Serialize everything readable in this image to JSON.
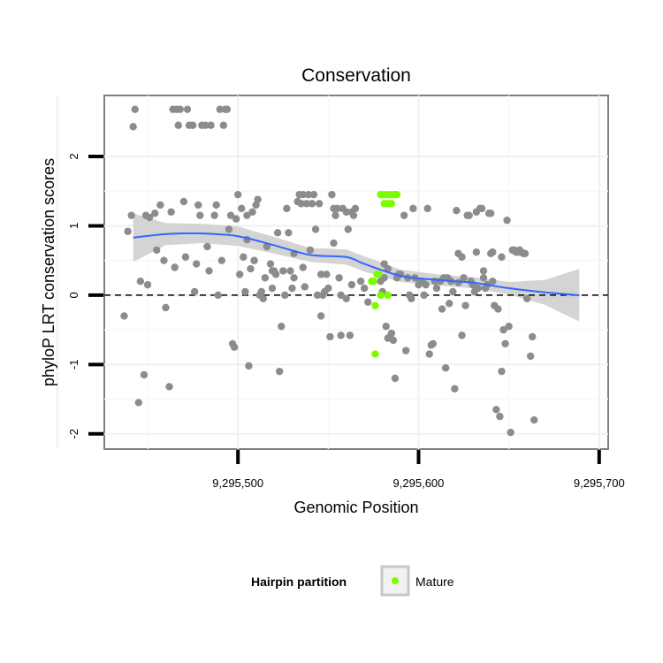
{
  "chart_data": {
    "type": "scatter",
    "title": "Conservation",
    "xlabel": "Genomic Position",
    "ylabel": "phyloP LRT conservation scores",
    "xlim": [
      9295426,
      9295705
    ],
    "ylim": [
      -2.22,
      2.88
    ],
    "x_ticks": [
      9295500,
      9295600,
      9295700
    ],
    "x_tick_labels": [
      "9,295,500",
      "9,295,600",
      "9,295,700"
    ],
    "y_ticks": [
      -2,
      -1,
      0,
      1,
      2
    ],
    "y_tick_labels": [
      "-2",
      "-1",
      "0",
      "1",
      "2"
    ],
    "grid": true,
    "legend_position": "bottom",
    "reference_line": {
      "y": 0,
      "style": "dashed"
    },
    "legend": {
      "title": "Hairpin partition",
      "entries": [
        "Mature"
      ]
    },
    "colors": {
      "other": "#8c8c8c",
      "mature": "#7cfc00",
      "smooth": "#3366ff",
      "ribbon": "#d2d2d2"
    },
    "series": [
      {
        "name": "",
        "group": "other",
        "points": [
          [
            9295441,
            1.15
          ],
          [
            9295442,
            2.43
          ],
          [
            9295443,
            2.68
          ],
          [
            9295445,
            -1.55
          ],
          [
            9295446,
            0.2
          ],
          [
            9295448,
            -1.15
          ],
          [
            9295449,
            1.15
          ],
          [
            9295450,
            0.15
          ],
          [
            9295451,
            1.12
          ],
          [
            9295454,
            1.18
          ],
          [
            9295455,
            0.65
          ],
          [
            9295457,
            1.3
          ],
          [
            9295459,
            0.5
          ],
          [
            9295460,
            -0.18
          ],
          [
            9295462,
            -1.32
          ],
          [
            9295463,
            1.2
          ],
          [
            9295464,
            2.68
          ],
          [
            9295465,
            0.4
          ],
          [
            9295466,
            2.68
          ],
          [
            9295467,
            2.45
          ],
          [
            9295468,
            2.68
          ],
          [
            9295470,
            1.35
          ],
          [
            9295471,
            0.55
          ],
          [
            9295472,
            2.68
          ],
          [
            9295473,
            2.45
          ],
          [
            9295475,
            2.45
          ],
          [
            9295476,
            0.05
          ],
          [
            9295477,
            0.45
          ],
          [
            9295478,
            1.3
          ],
          [
            9295479,
            1.15
          ],
          [
            9295480,
            2.45
          ],
          [
            9295482,
            2.45
          ],
          [
            9295483,
            0.7
          ],
          [
            9295484,
            0.35
          ],
          [
            9295485,
            2.45
          ],
          [
            9295487,
            1.15
          ],
          [
            9295488,
            1.3
          ],
          [
            9295489,
            0
          ],
          [
            9295490,
            2.68
          ],
          [
            9295491,
            0.5
          ],
          [
            9295492,
            2.45
          ],
          [
            9295493,
            2.68
          ],
          [
            9295494,
            2.68
          ],
          [
            9295495,
            0.95
          ],
          [
            9295496,
            1.15
          ],
          [
            9295497,
            -0.7
          ],
          [
            9295498,
            -0.75
          ],
          [
            9295499,
            1.1
          ],
          [
            9295500,
            1.45
          ],
          [
            9295501,
            0.3
          ],
          [
            9295502,
            1.25
          ],
          [
            9295503,
            0.55
          ],
          [
            9295504,
            0.05
          ],
          [
            9295505,
            1.15
          ],
          [
            9295506,
            -1.02
          ],
          [
            9295507,
            0.38
          ],
          [
            9295508,
            1.2
          ],
          [
            9295509,
            0.5
          ],
          [
            9295510,
            1.3
          ],
          [
            9295511,
            1.38
          ],
          [
            9295512,
            0
          ],
          [
            9295513,
            0.05
          ],
          [
            9295514,
            -0.05
          ],
          [
            9295515,
            0.25
          ],
          [
            9295516,
            0.7
          ],
          [
            9295518,
            0.45
          ],
          [
            9295519,
            0.1
          ],
          [
            9295520,
            0.35
          ],
          [
            9295521,
            0.3
          ],
          [
            9295522,
            0.9
          ],
          [
            9295523,
            -1.1
          ],
          [
            9295524,
            -0.45
          ],
          [
            9295525,
            0.35
          ],
          [
            9295526,
            0
          ],
          [
            9295527,
            1.25
          ],
          [
            9295528,
            0.9
          ],
          [
            9295529,
            0.35
          ],
          [
            9295530,
            0.1
          ],
          [
            9295531,
            0.25
          ],
          [
            9295533,
            1.35
          ],
          [
            9295534,
            1.45
          ],
          [
            9295535,
            1.32
          ],
          [
            9295536,
            0.4
          ],
          [
            9295537,
            0.12
          ],
          [
            9295538,
            1.32
          ],
          [
            9295539,
            1.45
          ],
          [
            9295540,
            0.65
          ],
          [
            9295541,
            1.32
          ],
          [
            9295542,
            1.45
          ],
          [
            9295543,
            0.95
          ],
          [
            9295544,
            0
          ],
          [
            9295545,
            1.32
          ],
          [
            9295546,
            0.3
          ],
          [
            9295547,
            0
          ],
          [
            9295548,
            0.05
          ],
          [
            9295549,
            0.3
          ],
          [
            9295550,
            0.1
          ],
          [
            9295551,
            -0.6
          ],
          [
            9295552,
            1.45
          ],
          [
            9295553,
            1.25
          ],
          [
            9295554,
            1.15
          ],
          [
            9295555,
            1.25
          ],
          [
            9295556,
            0.25
          ],
          [
            9295557,
            0
          ],
          [
            9295558,
            1.25
          ],
          [
            9295560,
            -0.05
          ],
          [
            9295561,
            0.95
          ],
          [
            9295562,
            -0.58
          ],
          [
            9295563,
            0.15
          ],
          [
            9295564,
            1.15
          ],
          [
            9295565,
            1.25
          ],
          [
            9295568,
            0.2
          ],
          [
            9295570,
            0.1
          ],
          [
            9295572,
            -0.1
          ],
          [
            9295579,
            0.2
          ],
          [
            9295580,
            0.05
          ],
          [
            9295581,
            0.25
          ],
          [
            9295582,
            -0.45
          ],
          [
            9295583,
            0.38
          ],
          [
            9295585,
            -0.55
          ],
          [
            9295586,
            -0.65
          ],
          [
            9295587,
            -1.2
          ],
          [
            9295588,
            0.25
          ],
          [
            9295590,
            0.3
          ],
          [
            9295592,
            1.15
          ],
          [
            9295593,
            -0.8
          ],
          [
            9295594,
            0.25
          ],
          [
            9295595,
            0
          ],
          [
            9295596,
            -0.05
          ],
          [
            9295597,
            1.25
          ],
          [
            9295598,
            0.25
          ],
          [
            9295600,
            0.15
          ],
          [
            9295601,
            0.2
          ],
          [
            9295602,
            0.2
          ],
          [
            9295603,
            0
          ],
          [
            9295604,
            0.15
          ],
          [
            9295605,
            1.25
          ],
          [
            9295606,
            -0.85
          ],
          [
            9295607,
            -0.72
          ],
          [
            9295608,
            -0.7
          ],
          [
            9295609,
            0.2
          ],
          [
            9295610,
            0.1
          ],
          [
            9295612,
            0.2
          ],
          [
            9295613,
            -0.2
          ],
          [
            9295614,
            0.25
          ],
          [
            9295615,
            -1.05
          ],
          [
            9295616,
            0.25
          ],
          [
            9295617,
            -0.12
          ],
          [
            9295618,
            0.2
          ],
          [
            9295619,
            0.05
          ],
          [
            9295620,
            -1.35
          ],
          [
            9295621,
            1.22
          ],
          [
            9295622,
            0.18
          ],
          [
            9295624,
            -0.58
          ],
          [
            9295625,
            0.25
          ],
          [
            9295626,
            -0.15
          ],
          [
            9295627,
            1.15
          ],
          [
            9295628,
            1.15
          ],
          [
            9295629,
            0.2
          ],
          [
            9295630,
            0.15
          ],
          [
            9295631,
            0.05
          ],
          [
            9295632,
            1.2
          ],
          [
            9295633,
            0.1
          ],
          [
            9295634,
            1.25
          ],
          [
            9295635,
            1.25
          ],
          [
            9295636,
            0.25
          ],
          [
            9295637,
            0.1
          ],
          [
            9295638,
            0.15
          ],
          [
            9295639,
            1.18
          ],
          [
            9295640,
            1.18
          ],
          [
            9295641,
            0.2
          ],
          [
            9295642,
            -0.15
          ],
          [
            9295643,
            -1.65
          ],
          [
            9295644,
            -0.2
          ],
          [
            9295645,
            -1.75
          ],
          [
            9295646,
            -1.1
          ],
          [
            9295647,
            -0.5
          ],
          [
            9295648,
            -0.7
          ],
          [
            9295649,
            1.08
          ],
          [
            9295650,
            -0.45
          ],
          [
            9295651,
            -1.98
          ],
          [
            9295652,
            0.65
          ],
          [
            9295653,
            0.65
          ],
          [
            9295654,
            0.62
          ],
          [
            9295655,
            0.62
          ],
          [
            9295656,
            0.65
          ],
          [
            9295657,
            0.62
          ],
          [
            9295658,
            0.6
          ],
          [
            9295659,
            0.6
          ],
          [
            9295660,
            -0.05
          ],
          [
            9295662,
            -0.88
          ],
          [
            9295663,
            -0.6
          ],
          [
            9295664,
            -1.8
          ],
          [
            9295437,
            -0.3
          ],
          [
            9295439,
            0.92
          ],
          [
            9295536,
            1.45
          ],
          [
            9295531,
            0.6
          ],
          [
            9295553,
            0.75
          ],
          [
            9295557,
            -0.58
          ],
          [
            9295505,
            0.8
          ],
          [
            9295509,
            0.5
          ],
          [
            9295519,
            0.35
          ],
          [
            9295546,
            -0.3
          ],
          [
            9295560,
            1.2
          ],
          [
            9295563,
            1.2
          ],
          [
            9295581,
            0.45
          ],
          [
            9295583,
            -0.62
          ],
          [
            9295589,
            0.3
          ],
          [
            9295622,
            0.6
          ],
          [
            9295624,
            0.55
          ],
          [
            9295632,
            0.62
          ],
          [
            9295636,
            0.35
          ],
          [
            9295640,
            0.6
          ],
          [
            9295641,
            0.62
          ],
          [
            9295646,
            0.55
          ]
        ]
      },
      {
        "name": "Mature",
        "group": "mature",
        "points": [
          [
            9295574,
            0.2
          ],
          [
            9295575,
            0.2
          ],
          [
            9295576,
            -0.15
          ],
          [
            9295576,
            -0.85
          ],
          [
            9295577,
            0.3
          ],
          [
            9295578,
            0.3
          ],
          [
            9295579,
            1.45
          ],
          [
            9295580,
            1.45
          ],
          [
            9295581,
            1.32
          ],
          [
            9295582,
            1.45
          ],
          [
            9295583,
            1.32
          ],
          [
            9295584,
            1.45
          ],
          [
            9295585,
            1.32
          ],
          [
            9295586,
            1.45
          ],
          [
            9295587,
            1.45
          ],
          [
            9295588,
            1.45
          ],
          [
            9295579,
            0
          ],
          [
            9295583,
            0
          ]
        ]
      }
    ],
    "smooth_fit": {
      "x": [
        9295442,
        9295460,
        9295480,
        9295500,
        9295520,
        9295540,
        9295560,
        9295570,
        9295590,
        9295610,
        9295630,
        9295650,
        9295670,
        9295689
      ],
      "y": [
        0.83,
        0.88,
        0.89,
        0.85,
        0.72,
        0.58,
        0.55,
        0.45,
        0.28,
        0.22,
        0.18,
        0.1,
        0.04,
        0.0
      ],
      "lo": [
        0.48,
        0.72,
        0.75,
        0.71,
        0.6,
        0.48,
        0.44,
        0.34,
        0.19,
        0.14,
        0.1,
        0.01,
        -0.14,
        -0.38
      ],
      "hi": [
        1.18,
        1.04,
        1.03,
        0.99,
        0.84,
        0.68,
        0.66,
        0.56,
        0.37,
        0.3,
        0.26,
        0.19,
        0.22,
        0.38
      ]
    }
  }
}
